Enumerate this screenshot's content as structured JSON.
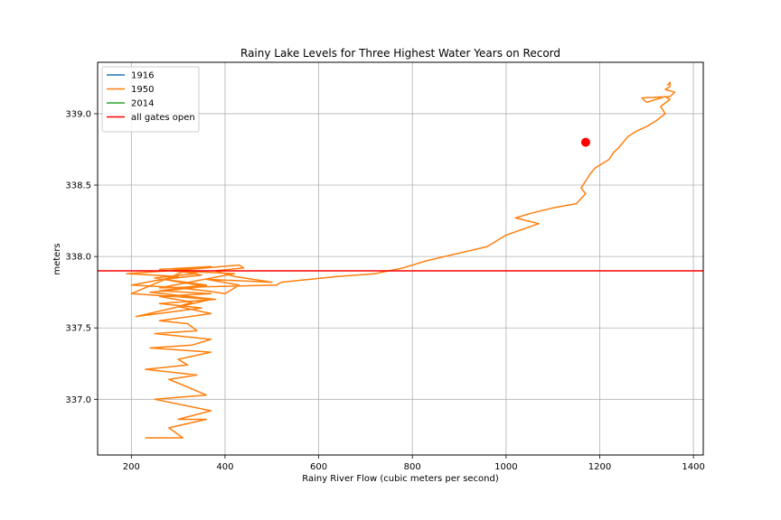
{
  "chart_data": {
    "type": "line",
    "title": "Rainy Lake Levels for Three Highest Water Years on Record",
    "xlabel": "Rainy River Flow (cubic meters per second)",
    "ylabel": "meters",
    "xlim": [
      128,
      1421
    ],
    "ylim": [
      336.61,
      339.36
    ],
    "xticks": [
      200,
      400,
      600,
      800,
      1000,
      1200,
      1400
    ],
    "xtick_labels": [
      "200",
      "400",
      "600",
      "800",
      "1000",
      "1200",
      "1400"
    ],
    "yticks": [
      337.0,
      337.5,
      338.0,
      338.5,
      339.0
    ],
    "ytick_labels": [
      "337.0",
      "337.5",
      "338.0",
      "338.5",
      "339.0"
    ],
    "grid": true,
    "legend_position": "top-left",
    "series": [
      {
        "name": "1916",
        "color": "#1f77b4",
        "x": [],
        "y": []
      },
      {
        "name": "1950",
        "color": "#ff7f0e",
        "x": [
          230,
          310,
          280,
          360,
          300,
          370,
          250,
          360,
          310,
          280,
          340,
          230,
          320,
          300,
          370,
          240,
          330,
          370,
          250,
          340,
          320,
          260,
          370,
          300,
          330,
          260,
          370,
          260,
          310,
          200,
          250,
          300,
          190,
          280,
          330,
          200,
          290,
          370,
          210,
          350,
          260,
          380,
          240,
          360,
          250,
          340,
          260,
          370,
          300,
          350,
          270,
          360,
          300,
          360,
          400,
          430,
          360,
          500,
          420,
          380,
          440,
          430,
          290,
          420,
          260,
          510,
          520,
          640,
          720,
          780,
          830,
          960,
          1000,
          1070,
          1020,
          1050,
          1100,
          1150,
          1170,
          1160,
          1180,
          1190,
          1220,
          1230,
          1240,
          1250,
          1260,
          1280,
          1300,
          1320,
          1340,
          1330,
          1350,
          1340,
          1300,
          1290,
          1350,
          1360,
          1340,
          1350,
          1350,
          1345,
          1350
        ],
        "y": [
          336.73,
          336.73,
          336.8,
          336.86,
          336.86,
          336.92,
          337.0,
          337.03,
          337.1,
          337.14,
          337.17,
          337.21,
          337.24,
          337.28,
          337.33,
          337.36,
          337.38,
          337.42,
          337.46,
          337.48,
          337.53,
          337.55,
          337.6,
          337.65,
          337.68,
          337.72,
          337.74,
          337.76,
          337.78,
          337.8,
          337.83,
          337.86,
          337.88,
          337.9,
          337.92,
          337.74,
          337.72,
          337.7,
          337.58,
          337.64,
          337.67,
          337.7,
          337.75,
          337.79,
          337.85,
          337.88,
          337.91,
          337.93,
          337.9,
          337.87,
          337.84,
          337.8,
          337.78,
          337.76,
          337.74,
          337.8,
          337.84,
          337.82,
          337.86,
          337.9,
          337.92,
          337.94,
          337.9,
          337.88,
          337.78,
          337.8,
          337.82,
          337.86,
          337.88,
          337.92,
          337.97,
          338.07,
          338.15,
          338.23,
          338.27,
          338.3,
          338.34,
          338.37,
          338.44,
          338.48,
          338.58,
          338.62,
          338.68,
          338.73,
          338.76,
          338.8,
          338.84,
          338.88,
          338.91,
          338.95,
          339.0,
          339.05,
          339.1,
          339.12,
          339.08,
          339.11,
          339.12,
          339.15,
          339.17,
          339.19,
          339.22,
          339.2,
          339.22
        ]
      },
      {
        "name": "2014",
        "color": "#2ca02c",
        "x": [],
        "y": []
      },
      {
        "name": "all gates open",
        "color": "#ff0000",
        "type": "hline",
        "y": 337.9
      }
    ],
    "point": {
      "x": 1170,
      "y": 338.8,
      "color": "#ff0000"
    }
  }
}
